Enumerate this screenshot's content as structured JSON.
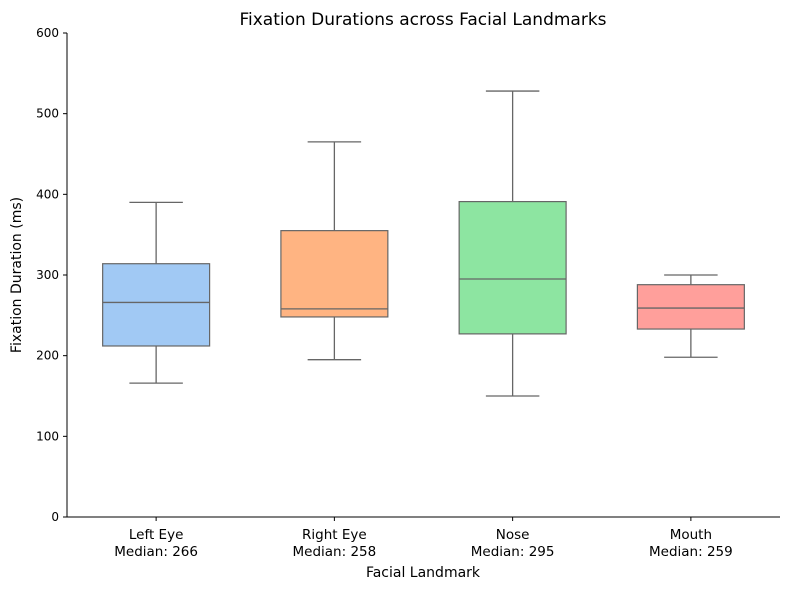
{
  "chart_data": {
    "type": "box",
    "title": "Fixation Durations across Facial Landmarks",
    "xlabel": "Facial Landmark",
    "ylabel": "Fixation Duration (ms)",
    "ylim": [
      0,
      600
    ],
    "yticks": [
      0,
      100,
      200,
      300,
      400,
      500,
      600
    ],
    "grid": false,
    "categories": [
      {
        "name": "Left Eye",
        "median_label": "Median: 266",
        "color": "#a1c9f4",
        "whisker_low": 166,
        "q1": 212,
        "median": 266,
        "q3": 314,
        "whisker_high": 390
      },
      {
        "name": "Right Eye",
        "median_label": "Median: 258",
        "color": "#ffb482",
        "whisker_low": 195,
        "q1": 248,
        "median": 258,
        "q3": 355,
        "whisker_high": 465
      },
      {
        "name": "Nose",
        "median_label": "Median: 295",
        "color": "#8de5a1",
        "whisker_low": 150,
        "q1": 227,
        "median": 295,
        "q3": 391,
        "whisker_high": 528
      },
      {
        "name": "Mouth",
        "median_label": "Median: 259",
        "color": "#ff9f9b",
        "whisker_low": 198,
        "q1": 233,
        "median": 259,
        "q3": 288,
        "whisker_high": 300
      }
    ]
  }
}
